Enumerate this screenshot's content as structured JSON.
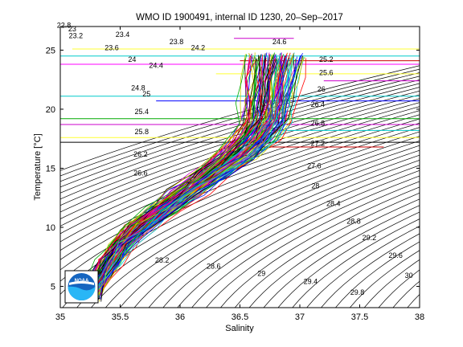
{
  "chart_data": {
    "type": "line",
    "title": "WMO ID 1900491, internal ID 1230, 20–Sep–2017",
    "xlabel": "Salinity",
    "ylabel": "Temperature [°C]",
    "xlim": [
      35,
      38
    ],
    "ylim": [
      3.2,
      27
    ],
    "xticks": [
      35,
      35.5,
      36,
      36.5,
      37,
      37.5,
      38
    ],
    "yticks": [
      5,
      10,
      15,
      20,
      25
    ],
    "grid": false,
    "legend": "none",
    "contour_labels": [
      {
        "label": "22.8",
        "s": 35.03,
        "t": 26.9
      },
      {
        "label": "23",
        "s": 35.1,
        "t": 26.6
      },
      {
        "label": "23.2",
        "s": 35.13,
        "t": 26.0
      },
      {
        "label": "23.4",
        "s": 35.52,
        "t": 26.1
      },
      {
        "label": "23.6",
        "s": 35.43,
        "t": 25.0
      },
      {
        "label": "23.8",
        "s": 35.97,
        "t": 25.5
      },
      {
        "label": "24",
        "s": 35.6,
        "t": 24.0
      },
      {
        "label": "24.2",
        "s": 36.15,
        "t": 25.0
      },
      {
        "label": "24.4",
        "s": 35.8,
        "t": 23.5
      },
      {
        "label": "24.6",
        "s": 36.83,
        "t": 25.5
      },
      {
        "label": "24.8",
        "s": 35.65,
        "t": 21.6
      },
      {
        "label": "25",
        "s": 35.72,
        "t": 21.1
      },
      {
        "label": "25.2",
        "s": 37.22,
        "t": 24.0
      },
      {
        "label": "25.4",
        "s": 35.68,
        "t": 19.6
      },
      {
        "label": "25.6",
        "s": 37.22,
        "t": 22.9
      },
      {
        "label": "25.8",
        "s": 35.68,
        "t": 17.9
      },
      {
        "label": "26",
        "s": 37.18,
        "t": 21.5
      },
      {
        "label": "26.2",
        "s": 35.67,
        "t": 16.0
      },
      {
        "label": "26.4",
        "s": 37.15,
        "t": 20.2
      },
      {
        "label": "26.6",
        "s": 35.67,
        "t": 14.4
      },
      {
        "label": "26.8",
        "s": 37.15,
        "t": 18.6
      },
      {
        "label": "27.2",
        "s": 37.15,
        "t": 16.9
      },
      {
        "label": "27.6",
        "s": 37.12,
        "t": 15.0
      },
      {
        "label": "28",
        "s": 37.13,
        "t": 13.3
      },
      {
        "label": "28.4",
        "s": 37.28,
        "t": 11.8
      },
      {
        "label": "28.8",
        "s": 37.45,
        "t": 10.3
      },
      {
        "label": "28.2",
        "s": 35.85,
        "t": 7.0
      },
      {
        "label": "29.2",
        "s": 37.58,
        "t": 8.9
      },
      {
        "label": "28.6",
        "s": 36.28,
        "t": 6.5
      },
      {
        "label": "29.6",
        "s": 37.8,
        "t": 7.4
      },
      {
        "label": "29",
        "s": 36.68,
        "t": 5.9
      },
      {
        "label": "29.4",
        "s": 37.09,
        "t": 5.2
      },
      {
        "label": "30",
        "s": 37.91,
        "t": 5.7
      },
      {
        "label": "29.8",
        "s": 37.48,
        "t": 4.3
      }
    ],
    "mean_profile": {
      "s": [
        35.25,
        35.32,
        35.4,
        35.5,
        35.65,
        35.85,
        36.05,
        36.25,
        36.45,
        36.6,
        36.7,
        36.72,
        36.75,
        36.78
      ],
      "t": [
        4.0,
        5.5,
        7.0,
        8.5,
        10.0,
        11.5,
        13.0,
        14.5,
        16.0,
        17.5,
        19.0,
        20.5,
        22.5,
        24.5
      ]
    },
    "horizontal_lines": [
      {
        "t": 26.0,
        "s0": 36.45,
        "s1": 36.95,
        "color": "#cc00cc"
      },
      {
        "t": 25.1,
        "s0": 35.1,
        "s1": 38.0,
        "color": "#ffff33"
      },
      {
        "t": 24.5,
        "s0": 35.0,
        "s1": 38.0,
        "color": "#00cccc"
      },
      {
        "t": 24.1,
        "s0": 36.5,
        "s1": 38.0,
        "color": "#cc0000"
      },
      {
        "t": 23.8,
        "s0": 35.0,
        "s1": 38.0,
        "color": "#ff00ff"
      },
      {
        "t": 23.0,
        "s0": 36.3,
        "s1": 38.0,
        "color": "#ffff33"
      },
      {
        "t": 22.4,
        "s0": 37.2,
        "s1": 38.0,
        "color": "#cc00cc"
      },
      {
        "t": 21.1,
        "s0": 35.0,
        "s1": 38.0,
        "color": "#00cccc"
      },
      {
        "t": 20.7,
        "s0": 35.8,
        "s1": 38.0,
        "color": "#0000ff"
      },
      {
        "t": 19.2,
        "s0": 35.0,
        "s1": 38.0,
        "color": "#00aa00"
      },
      {
        "t": 18.7,
        "s0": 35.0,
        "s1": 38.0,
        "color": "#cc00cc"
      },
      {
        "t": 18.2,
        "s0": 36.6,
        "s1": 38.0,
        "color": "#00cccc"
      },
      {
        "t": 17.6,
        "s0": 35.0,
        "s1": 38.0,
        "color": "#ffff33"
      },
      {
        "t": 17.2,
        "s0": 35.0,
        "s1": 38.0,
        "color": "#000000"
      },
      {
        "t": 16.8,
        "s0": 36.7,
        "s1": 37.7,
        "color": "#cc0000"
      }
    ],
    "profile_colors": [
      "#0000ff",
      "#00aa00",
      "#ff0000",
      "#00cccc",
      "#cc00cc",
      "#cccc00",
      "#000000"
    ],
    "logo_text": "NOAA"
  }
}
